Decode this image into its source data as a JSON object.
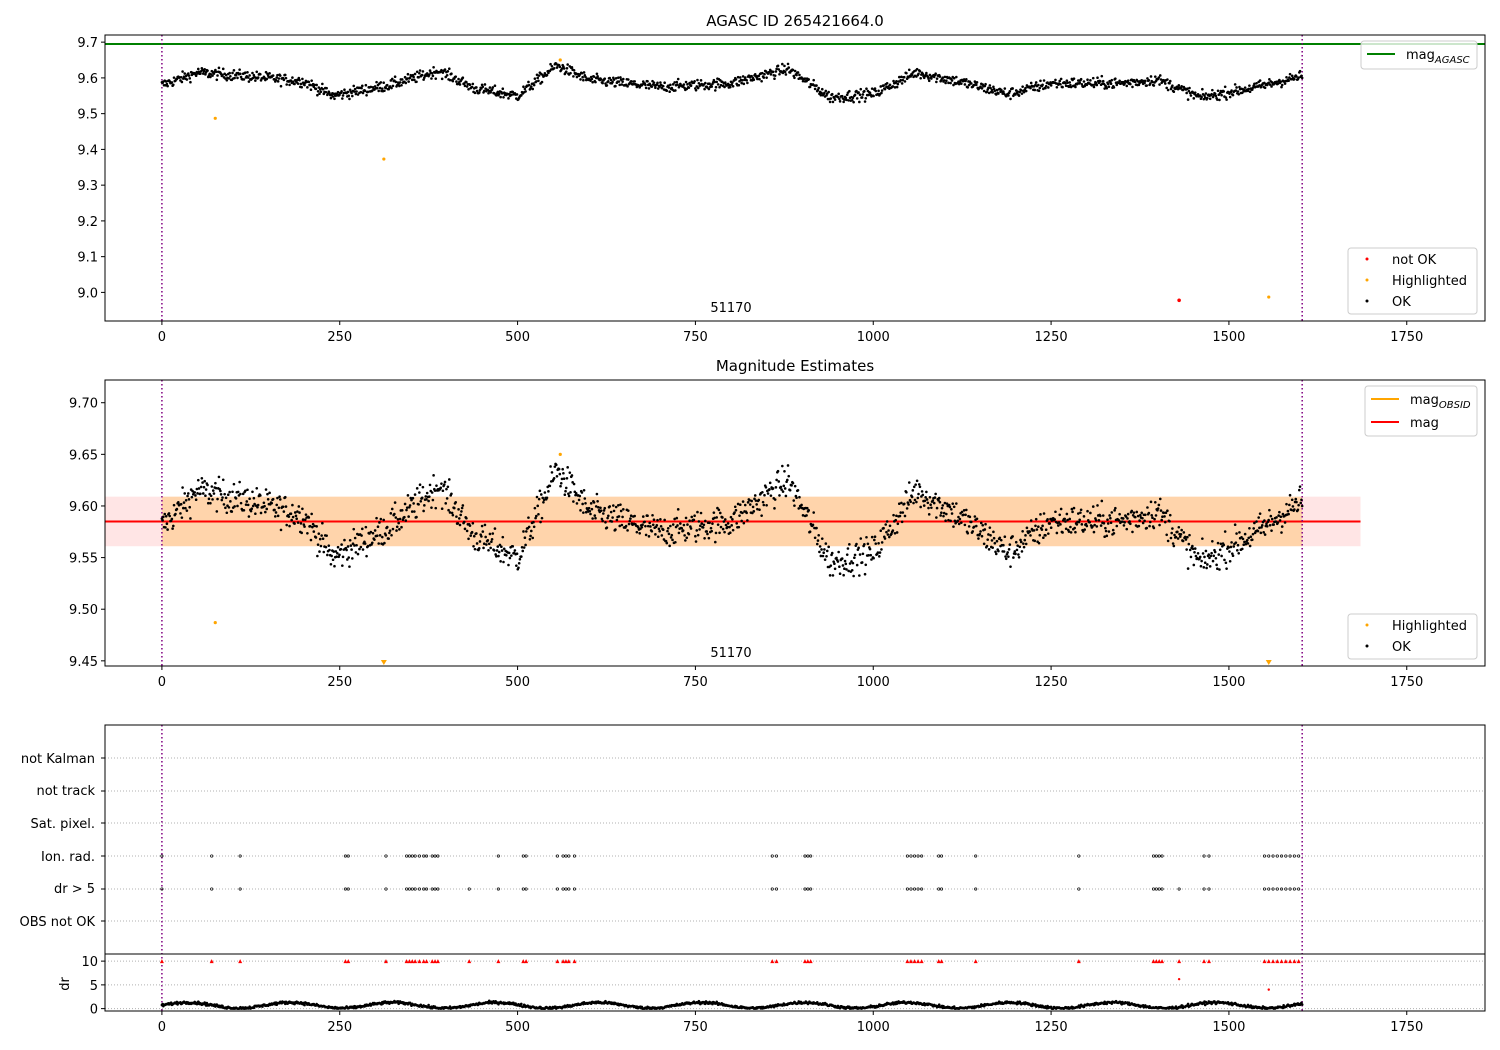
{
  "chart_data": [
    {
      "type": "scatter",
      "title": "AGASC ID 265421664.0",
      "xlim": [
        -80,
        1860
      ],
      "ylim": [
        8.92,
        9.72
      ],
      "xticks": [
        0,
        250,
        500,
        750,
        1000,
        1250,
        1500,
        1750
      ],
      "yticks": [
        "9.0",
        "9.1",
        "9.2",
        "9.3",
        "9.4",
        "9.5",
        "9.6",
        "9.7"
      ],
      "grid": false,
      "annotation": {
        "text": "51170",
        "x": 800,
        "y": 8.96
      },
      "vlines": [
        0,
        1603
      ],
      "hline": {
        "name": "mag",
        "subscript": "AGASC",
        "y": 9.695,
        "color": "#008000"
      },
      "ok_series": {
        "name": "OK",
        "color": "#000000",
        "n": 1600,
        "x_range": [
          0,
          1603
        ],
        "segments": [
          [
            0,
            9.58
          ],
          [
            50,
            9.615
          ],
          [
            120,
            9.605
          ],
          [
            200,
            9.59
          ],
          [
            240,
            9.55
          ],
          [
            320,
            9.58
          ],
          [
            390,
            9.62
          ],
          [
            440,
            9.57
          ],
          [
            500,
            9.55
          ],
          [
            555,
            9.635
          ],
          [
            600,
            9.595
          ],
          [
            700,
            9.575
          ],
          [
            800,
            9.585
          ],
          [
            880,
            9.625
          ],
          [
            940,
            9.545
          ],
          [
            1000,
            9.555
          ],
          [
            1060,
            9.615
          ],
          [
            1120,
            9.59
          ],
          [
            1190,
            9.555
          ],
          [
            1250,
            9.585
          ],
          [
            1350,
            9.585
          ],
          [
            1400,
            9.595
          ],
          [
            1460,
            9.545
          ],
          [
            1540,
            9.575
          ],
          [
            1603,
            9.605
          ]
        ],
        "noise": 0.011
      },
      "highlighted": {
        "name": "Highlighted",
        "color": "#ffa500",
        "x": [
          75,
          312,
          560,
          1556
        ],
        "y": [
          9.487,
          9.373,
          9.65,
          8.987
        ]
      },
      "not_ok": {
        "name": "not OK",
        "color": "#ff0000",
        "x": [
          1430
        ],
        "y": [
          8.978
        ]
      },
      "legend_lower": [
        "not OK",
        "Highlighted",
        "OK"
      ],
      "legend_upper": [
        {
          "name": "mag",
          "subscript": "AGASC"
        }
      ]
    },
    {
      "type": "scatter",
      "title": "Magnitude Estimates",
      "xlim": [
        -80,
        1860
      ],
      "ylim": [
        9.445,
        9.722
      ],
      "xticks": [
        0,
        250,
        500,
        750,
        1000,
        1250,
        1500,
        1750
      ],
      "yticks": [
        "9.45",
        "9.50",
        "9.55",
        "9.60",
        "9.65",
        "9.70"
      ],
      "grid": false,
      "annotation": {
        "text": "51170",
        "x": 800,
        "y": 9.455
      },
      "vlines": [
        0,
        1603
      ],
      "mag_line": {
        "name": "mag",
        "y": 9.585,
        "x_range": [
          -80,
          1685
        ],
        "color": "#ff0000",
        "band": [
          9.561,
          9.609
        ]
      },
      "mag_obsid": {
        "name": "mag",
        "subscript": "OBSID",
        "y": 9.585,
        "x_range": [
          0,
          1603
        ],
        "color": "#ffa500",
        "band": [
          9.561,
          9.609
        ]
      },
      "highlighted": {
        "name": "Highlighted",
        "color": "#ffa500",
        "x": [
          75,
          560
        ],
        "y": [
          9.487,
          9.65
        ]
      },
      "offscale_markers": {
        "x": [
          312,
          1556
        ],
        "color": "#ffa500"
      },
      "legend_upper": [
        {
          "name": "mag",
          "subscript": "OBSID"
        },
        {
          "name": "mag"
        }
      ],
      "legend_lower": [
        "Highlighted",
        "OK"
      ]
    },
    {
      "type": "scatter",
      "title": "",
      "xlim": [
        -80,
        1860
      ],
      "xticks": [
        0,
        250,
        500,
        750,
        1000,
        1250,
        1500,
        1750
      ],
      "category_labels": [
        "not Kalman",
        "not track",
        "Sat. pixel.",
        "Ion. rad.",
        "dr > 5",
        "OBS not OK"
      ],
      "vlines": [
        0,
        1603
      ],
      "flags": {
        "Ion. rad.": [
          0,
          70,
          110,
          258,
          262,
          315,
          344,
          348,
          352,
          356,
          362,
          368,
          372,
          380,
          384,
          388,
          473,
          508,
          512,
          556,
          564,
          568,
          572,
          580,
          858,
          864,
          904,
          908,
          912,
          1048,
          1053,
          1058,
          1063,
          1068,
          1092,
          1096,
          1144,
          1289,
          1394,
          1398,
          1402,
          1406,
          1465,
          1472,
          1550,
          1556,
          1562,
          1568,
          1574,
          1580,
          1586,
          1592,
          1598
        ],
        "dr > 5": [
          0,
          70,
          110,
          258,
          262,
          315,
          344,
          348,
          352,
          356,
          362,
          368,
          372,
          380,
          384,
          388,
          432,
          473,
          508,
          512,
          556,
          564,
          568,
          572,
          580,
          858,
          864,
          904,
          908,
          912,
          1048,
          1053,
          1058,
          1063,
          1068,
          1092,
          1096,
          1144,
          1289,
          1394,
          1398,
          1402,
          1406,
          1430,
          1465,
          1472,
          1550,
          1556,
          1562,
          1568,
          1574,
          1580,
          1586,
          1592,
          1598
        ]
      },
      "dr_panel": {
        "ylabel": "dr",
        "ylim": [
          -0.5,
          11.5
        ],
        "yticks": [
          "0",
          "5",
          "10"
        ],
        "clip_value": 10,
        "clip_color": "#ff0000",
        "extra_red": {
          "x": [
            1430,
            1556
          ],
          "y": [
            6.2,
            4.0
          ]
        }
      }
    }
  ]
}
